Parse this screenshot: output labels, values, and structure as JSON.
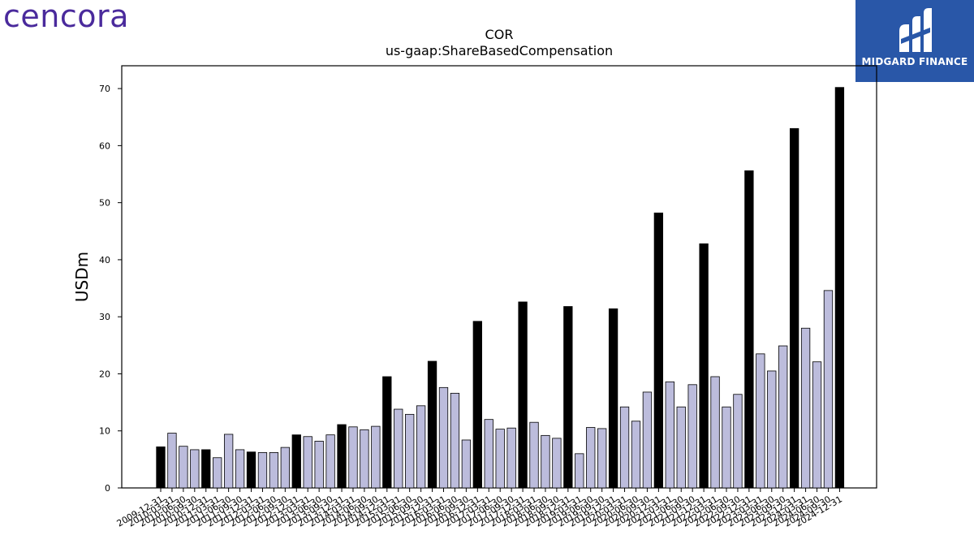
{
  "logos": {
    "left_brand": "cencora",
    "right_brand": "MIDGARD FINANCE"
  },
  "colors": {
    "annual_bar": "#000000",
    "quarter_bar": "#bcbcdc",
    "bar_edge": "#000000",
    "brand_purple": "#4a2a9c",
    "midgard_blue": "#2957a8"
  },
  "chart_data": {
    "type": "bar",
    "title": "COR",
    "subtitle": "us-gaap:ShareBasedCompensation",
    "xlabel": "",
    "ylabel": "USDm",
    "ylim": [
      0,
      74
    ],
    "yticks": [
      0,
      10,
      20,
      30,
      40,
      50,
      60,
      70
    ],
    "grid": false,
    "legend": "none",
    "categories": [
      "2009-12-31",
      "2010-03-31",
      "2010-06-30",
      "2010-09-30",
      "2010-12-31",
      "2011-03-31",
      "2011-06-30",
      "2011-09-30",
      "2011-12-31",
      "2012-03-31",
      "2012-06-30",
      "2012-09-30",
      "2012-12-31",
      "2013-03-31",
      "2013-06-30",
      "2013-09-30",
      "2013-12-31",
      "2014-03-31",
      "2014-06-30",
      "2014-09-30",
      "2014-12-31",
      "2015-03-31",
      "2015-06-30",
      "2015-09-30",
      "2015-12-31",
      "2016-03-31",
      "2016-06-30",
      "2016-09-30",
      "2016-12-31",
      "2017-03-31",
      "2017-06-30",
      "2017-09-30",
      "2017-12-31",
      "2018-03-31",
      "2018-06-30",
      "2018-09-30",
      "2018-12-31",
      "2019-03-31",
      "2019-06-30",
      "2019-09-30",
      "2019-12-31",
      "2020-03-31",
      "2020-06-30",
      "2020-09-30",
      "2020-12-31",
      "2021-03-31",
      "2021-06-30",
      "2021-09-30",
      "2021-12-31",
      "2022-03-31",
      "2022-06-30",
      "2022-09-30",
      "2022-12-31",
      "2023-03-31",
      "2023-06-30",
      "2023-09-30",
      "2023-12-31",
      "2024-03-31",
      "2024-06-30",
      "2024-09-30",
      "2024-12-31"
    ],
    "values": [
      7.2,
      9.6,
      7.3,
      6.7,
      6.7,
      5.3,
      9.4,
      6.7,
      6.3,
      6.2,
      6.2,
      7.1,
      9.3,
      9.0,
      8.2,
      9.3,
      11.1,
      10.7,
      10.2,
      10.8,
      19.5,
      13.8,
      12.9,
      14.4,
      22.2,
      17.6,
      16.6,
      8.4,
      29.2,
      12.0,
      10.3,
      10.5,
      32.6,
      11.5,
      9.2,
      8.7,
      31.8,
      6.0,
      10.6,
      10.4,
      31.4,
      14.2,
      11.7,
      16.8,
      48.2,
      18.6,
      14.2,
      18.1,
      42.8,
      19.5,
      14.2,
      16.4,
      55.6,
      23.5,
      20.5,
      24.9,
      63.0,
      28.0,
      22.1,
      34.6,
      70.2
    ],
    "annual_flags": [
      1,
      0,
      0,
      0,
      1,
      0,
      0,
      0,
      1,
      0,
      0,
      0,
      1,
      0,
      0,
      0,
      1,
      0,
      0,
      0,
      1,
      0,
      0,
      0,
      1,
      0,
      0,
      0,
      1,
      0,
      0,
      0,
      1,
      0,
      0,
      0,
      1,
      0,
      0,
      0,
      1,
      0,
      0,
      0,
      1,
      0,
      0,
      0,
      1,
      0,
      0,
      0,
      1,
      0,
      0,
      0,
      1,
      0,
      0,
      0,
      1
    ]
  }
}
